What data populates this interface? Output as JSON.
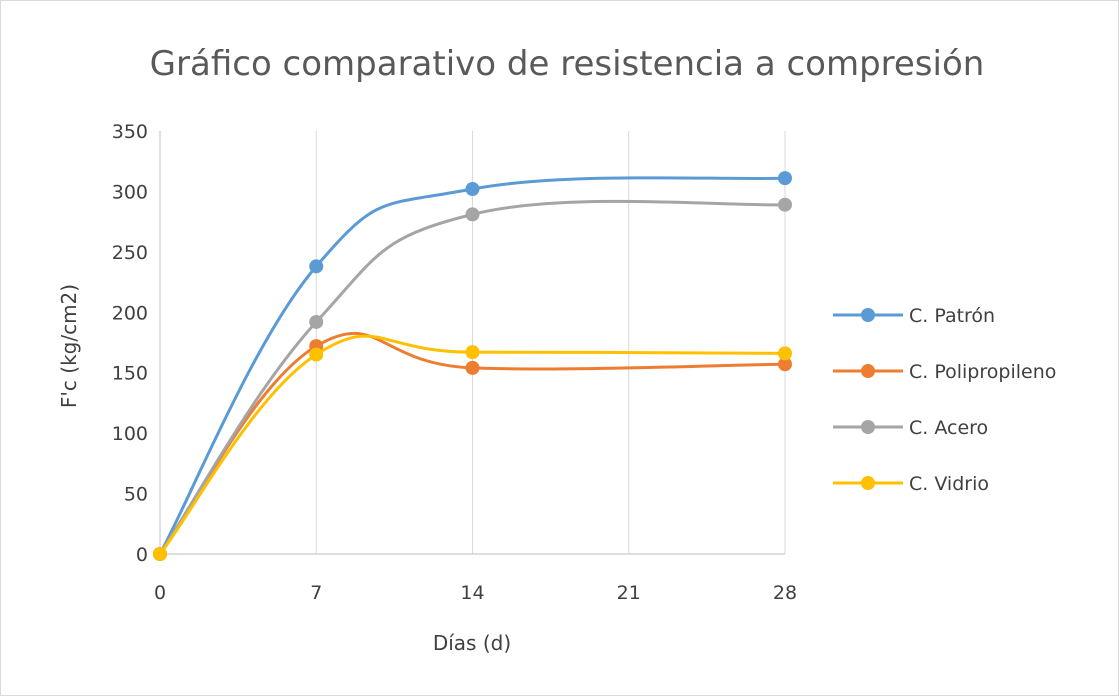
{
  "chart_data": {
    "type": "line",
    "title": "Gráfico comparativo de resistencia a compresión",
    "xlabel": "Días (d)",
    "ylabel": "F'c  (kg/cm2)",
    "x": [
      0,
      7,
      14,
      28
    ],
    "x_ticks": [
      "0",
      "7",
      "14",
      "21",
      "28"
    ],
    "x_tick_values": [
      0,
      7,
      14,
      21,
      28
    ],
    "ylim": [
      0,
      350
    ],
    "y_ticks": [
      0,
      50,
      100,
      150,
      200,
      250,
      300,
      350
    ],
    "grid": "vertical",
    "legend_position": "right",
    "smooth": true,
    "series": [
      {
        "name": "C. Patrón",
        "color": "#5b9bd5",
        "values": [
          0,
          238,
          302,
          311
        ]
      },
      {
        "name": "C. Polipropileno",
        "color": "#ed7d31",
        "values": [
          0,
          172,
          154,
          157
        ]
      },
      {
        "name": "C. Acero",
        "color": "#a5a5a5",
        "values": [
          0,
          192,
          281,
          289
        ]
      },
      {
        "name": "C. Vidrio",
        "color": "#ffc000",
        "values": [
          0,
          165,
          167,
          166
        ]
      }
    ]
  }
}
